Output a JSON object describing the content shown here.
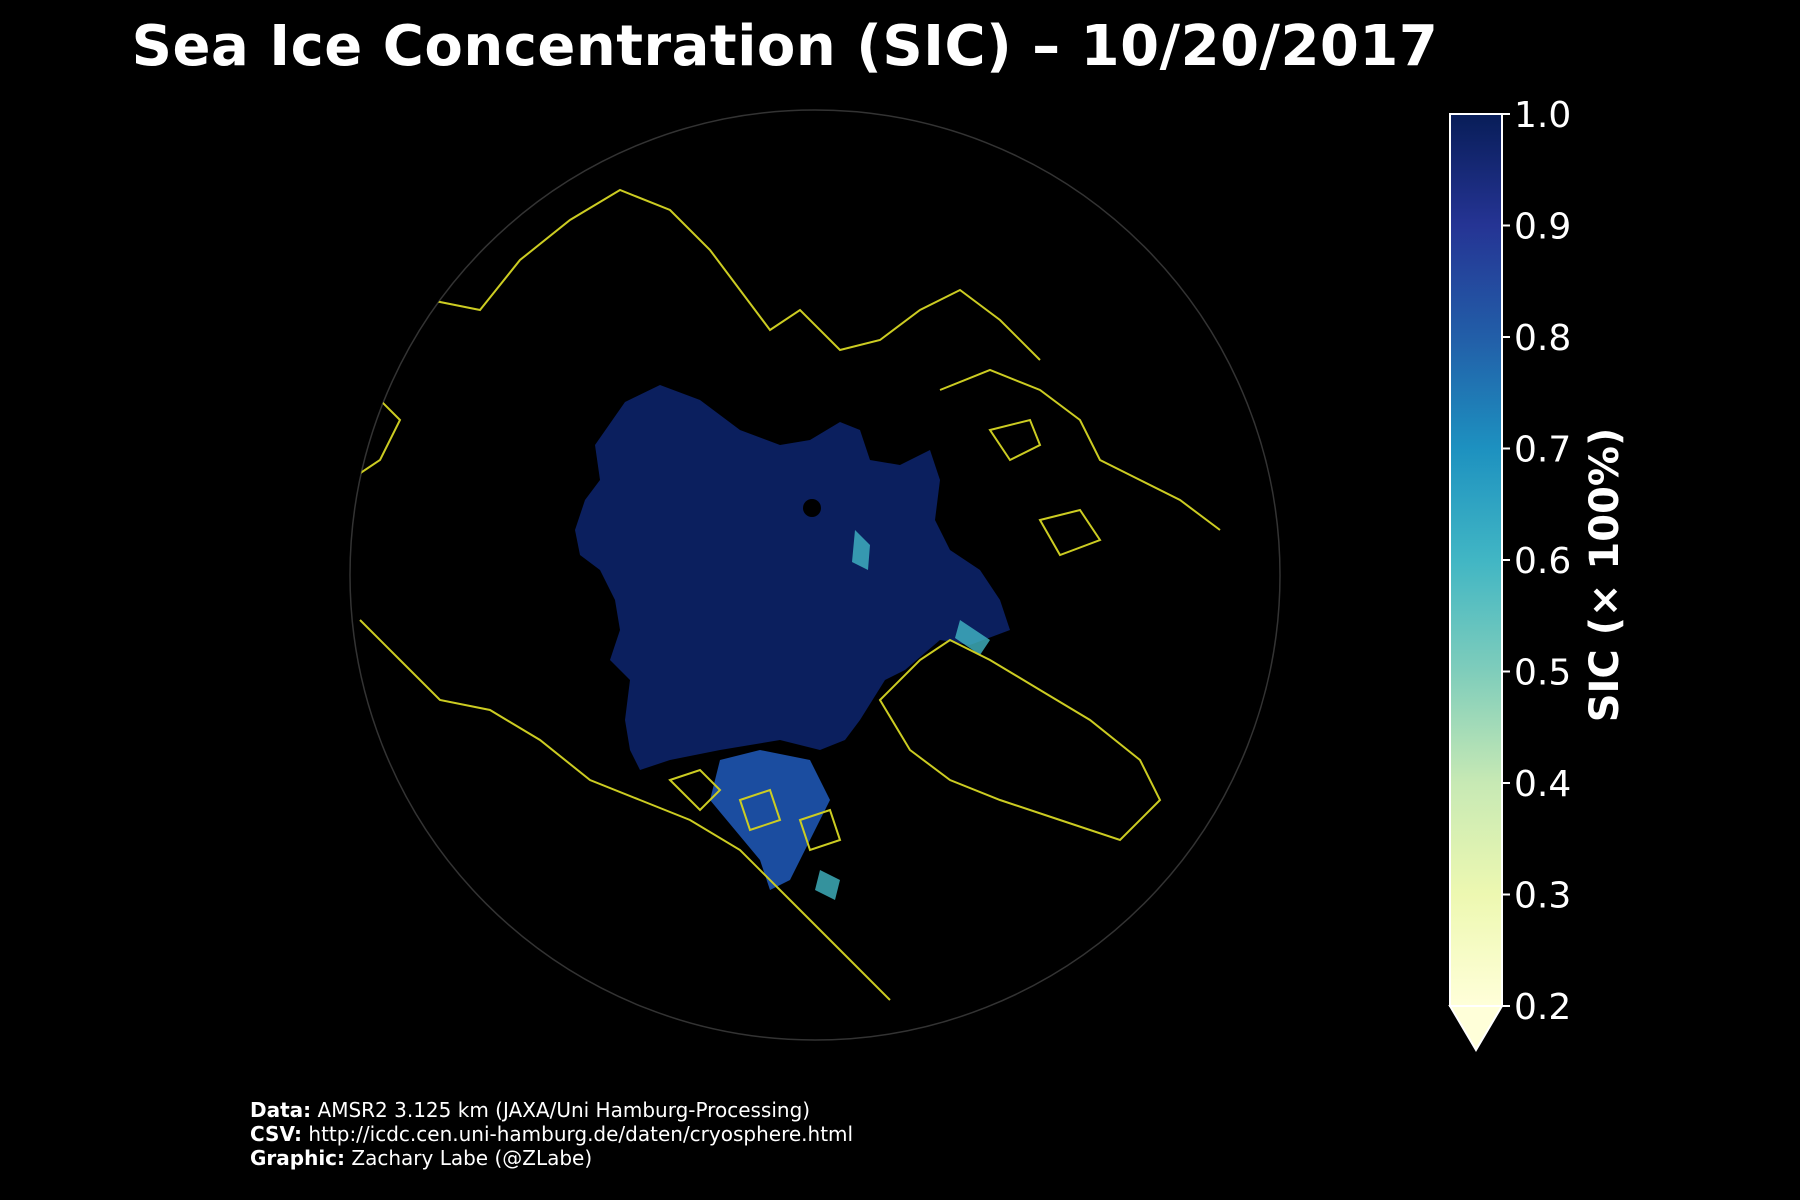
{
  "title": "Sea Ice Concentration (SIC) – 10/20/2017",
  "colorbar": {
    "label": "SIC (× 100%)",
    "ticks": [
      "1.0",
      "0.9",
      "0.8",
      "0.7",
      "0.6",
      "0.5",
      "0.4",
      "0.3",
      "0.2"
    ],
    "min": 0.2,
    "max": 1.0,
    "extend": "min",
    "colormap": [
      "#ffffd9",
      "#edf8b1",
      "#c7e9b4",
      "#7fcdbb",
      "#41b6c4",
      "#1d91c0",
      "#225ea8",
      "#253494",
      "#081d58"
    ]
  },
  "map": {
    "projection": "north-polar-stereographic",
    "ocean_color": "#000000",
    "coastline_color": "#cccc22",
    "ice_color": "#0b1f5e",
    "pole_marker_color": "#000000"
  },
  "credits": [
    {
      "label": "Data:",
      "text": "AMSR2 3.125 km (JAXA/Uni Hamburg-Processing)"
    },
    {
      "label": "CSV:",
      "text": "http://icdc.cen.uni-hamburg.de/daten/cryosphere.html"
    },
    {
      "label": "Graphic:",
      "text": "Zachary Labe (@ZLabe)"
    }
  ]
}
